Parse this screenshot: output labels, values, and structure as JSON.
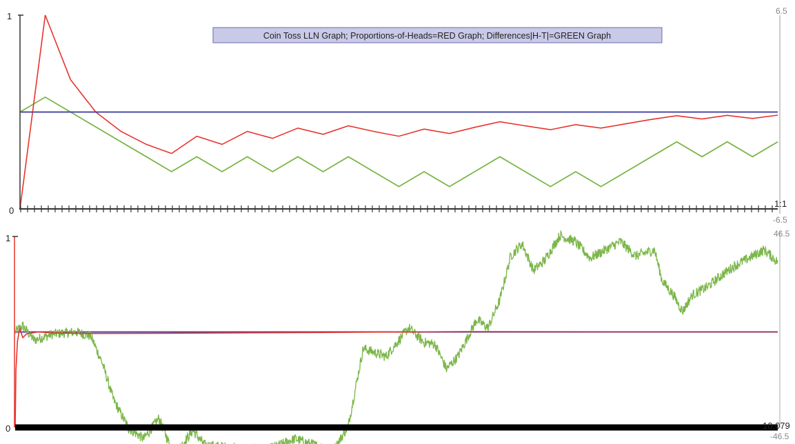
{
  "chart_data": [
    {
      "type": "line",
      "title": "Coin Toss LLN Graph; Proportions-of-Heads=RED Graph; Differences|H-T|=GREEN Graph",
      "n_tosses": 31,
      "left_axis": {
        "min_label": "0",
        "max_label": "1",
        "ylim": [
          0,
          1
        ]
      },
      "right_axis": {
        "top_label": "6.5",
        "bottom_label": "-6.5",
        "ylim": [
          -6.5,
          6.5
        ]
      },
      "x_end_label": "1:1",
      "reference_line": {
        "name": "half",
        "value": 0.5,
        "color": "#4a4aa6"
      },
      "series": [
        {
          "color": "#e8322c",
          "axis": "left",
          "values": [
            0,
            1.0,
            0.667,
            0.5,
            0.4,
            0.333,
            0.286,
            0.375,
            0.333,
            0.4,
            0.364,
            0.417,
            0.385,
            0.429,
            0.4,
            0.375,
            0.412,
            0.389,
            0.421,
            0.45,
            0.429,
            0.409,
            0.435,
            0.417,
            0.44,
            0.462,
            0.481,
            0.464,
            0.483,
            0.467,
            0.484
          ]
        },
        {
          "color": "#7ab648",
          "axis": "right",
          "values": [
            0,
            1,
            0,
            -1,
            -2,
            -3,
            -4,
            -3,
            -4,
            -3,
            -4,
            -3,
            -4,
            -3,
            -4,
            -5,
            -4,
            -5,
            -4,
            -3,
            -4,
            -5,
            -4,
            -5,
            -4,
            -3,
            -2,
            -3,
            -2,
            -3,
            -2
          ]
        }
      ],
      "colors": {
        "red": "#e8322c",
        "green": "#7ab648",
        "blue": "#4a4aa6",
        "axis": "#333333",
        "right_axis": "#999999"
      }
    },
    {
      "type": "line",
      "n_tosses": 10079,
      "left_axis": {
        "min_label": "0",
        "max_label": "1",
        "ylim": [
          0,
          1
        ]
      },
      "right_axis": {
        "top_label": "46.5",
        "bottom_label": "-46.5",
        "ylim": [
          -46.5,
          46.5
        ]
      },
      "x_end_label": "10,079",
      "reference_line": {
        "name": "half",
        "value": 0.5,
        "color": "#4a4aa6"
      },
      "series": [
        {
          "color": "#e8322c",
          "axis": "left",
          "proportion_samples": [
            [
              0,
              0.0
            ],
            [
              10,
              0.3
            ],
            [
              30,
              0.45
            ],
            [
              60,
              0.52
            ],
            [
              100,
              0.47
            ],
            [
              150,
              0.49
            ],
            [
              300,
              0.5
            ],
            [
              500,
              0.495
            ],
            [
              1000,
              0.492
            ],
            [
              2000,
              0.493
            ],
            [
              4000,
              0.497
            ],
            [
              6000,
              0.502
            ],
            [
              8000,
              0.501
            ],
            [
              10079,
              0.501
            ]
          ]
        },
        {
          "color": "#7ab648",
          "axis": "right",
          "difference_waypoints": [
            [
              0,
              0
            ],
            [
              100,
              3
            ],
            [
              250,
              -4
            ],
            [
              500,
              -1
            ],
            [
              800,
              0
            ],
            [
              1000,
              -2
            ],
            [
              1150,
              -15
            ],
            [
              1300,
              -33
            ],
            [
              1500,
              -47
            ],
            [
              1700,
              -52
            ],
            [
              1900,
              -42
            ],
            [
              2100,
              -60
            ],
            [
              2350,
              -48
            ],
            [
              2500,
              -55
            ],
            [
              3300,
              -58
            ],
            [
              3700,
              -52
            ],
            [
              4200,
              -58
            ],
            [
              4400,
              -46
            ],
            [
              4600,
              -8
            ],
            [
              4900,
              -12
            ],
            [
              5200,
              2
            ],
            [
              5400,
              -5
            ],
            [
              5550,
              -6
            ],
            [
              5700,
              -18
            ],
            [
              5850,
              -12
            ],
            [
              6100,
              6
            ],
            [
              6250,
              2
            ],
            [
              6400,
              15
            ],
            [
              6550,
              37
            ],
            [
              6700,
              43
            ],
            [
              6850,
              30
            ],
            [
              7000,
              35
            ],
            [
              7200,
              47
            ],
            [
              7400,
              44
            ],
            [
              7600,
              36
            ],
            [
              7800,
              40
            ],
            [
              8000,
              44
            ],
            [
              8200,
              37
            ],
            [
              8450,
              40
            ],
            [
              8550,
              25
            ],
            [
              8700,
              18
            ],
            [
              8820,
              10
            ],
            [
              8950,
              18
            ],
            [
              9150,
              22
            ],
            [
              9350,
              28
            ],
            [
              9500,
              32
            ],
            [
              9700,
              36
            ],
            [
              9900,
              40
            ],
            [
              10079,
              34
            ]
          ]
        }
      ],
      "colors": {
        "red": "#e8322c",
        "green": "#7ab648",
        "blue": "#4a4aa6",
        "axis": "#333333",
        "right_axis": "#999999"
      }
    }
  ]
}
